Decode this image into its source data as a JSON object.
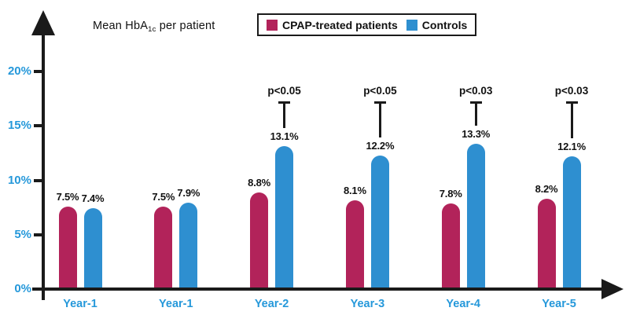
{
  "title_parts": {
    "prefix": "Mean HbA",
    "sub": "1c",
    "suffix": " per patient"
  },
  "chart_data": {
    "type": "bar",
    "title": "Mean HbA1c per patient",
    "categories": [
      "Year-1",
      "Year-1",
      "Year-2",
      "Year-3",
      "Year-4",
      "Year-5"
    ],
    "series": [
      {
        "name": "CPAP-treated patients",
        "color": "#b2235a",
        "values": [
          7.5,
          7.5,
          8.8,
          8.1,
          7.8,
          8.2
        ],
        "labels": [
          "7.5%",
          "7.5%",
          "8.8%",
          "8.1%",
          "7.8%",
          "8.2%"
        ]
      },
      {
        "name": "Controls",
        "color": "#2e8fd0",
        "values": [
          7.4,
          7.9,
          13.1,
          12.2,
          13.3,
          12.1
        ],
        "labels": [
          "7.4%",
          "7.9%",
          "13.1%",
          "12.2%",
          "13.3%",
          "12.1%"
        ]
      }
    ],
    "annotations": [
      {
        "category_index": 2,
        "text": "p<0.05"
      },
      {
        "category_index": 3,
        "text": "p<0.05"
      },
      {
        "category_index": 4,
        "text": "p<0.03"
      },
      {
        "category_index": 5,
        "text": "p<0.03"
      }
    ],
    "y_axis": {
      "ticks": [
        "0%",
        "5%",
        "10%",
        "15%",
        "20%"
      ],
      "min": 0,
      "max": 20
    },
    "ylim": [
      0,
      20
    ],
    "grid": false,
    "legend_position": "top",
    "colors": {
      "axis": "#1a1a1a",
      "axis_label_text": "#2598da",
      "bar_label_text": "#111111"
    }
  }
}
